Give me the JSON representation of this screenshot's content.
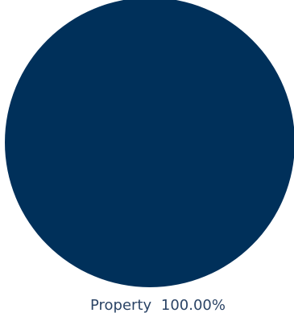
{
  "chart_data": {
    "type": "pie",
    "title": "",
    "categories": [
      "Property"
    ],
    "values": [
      100.0
    ],
    "value_labels": [
      "100.00%"
    ],
    "legend_placement": "bottom",
    "colors": {
      "slices": [
        "#00305A"
      ],
      "label_text": "#2B4466"
    }
  }
}
